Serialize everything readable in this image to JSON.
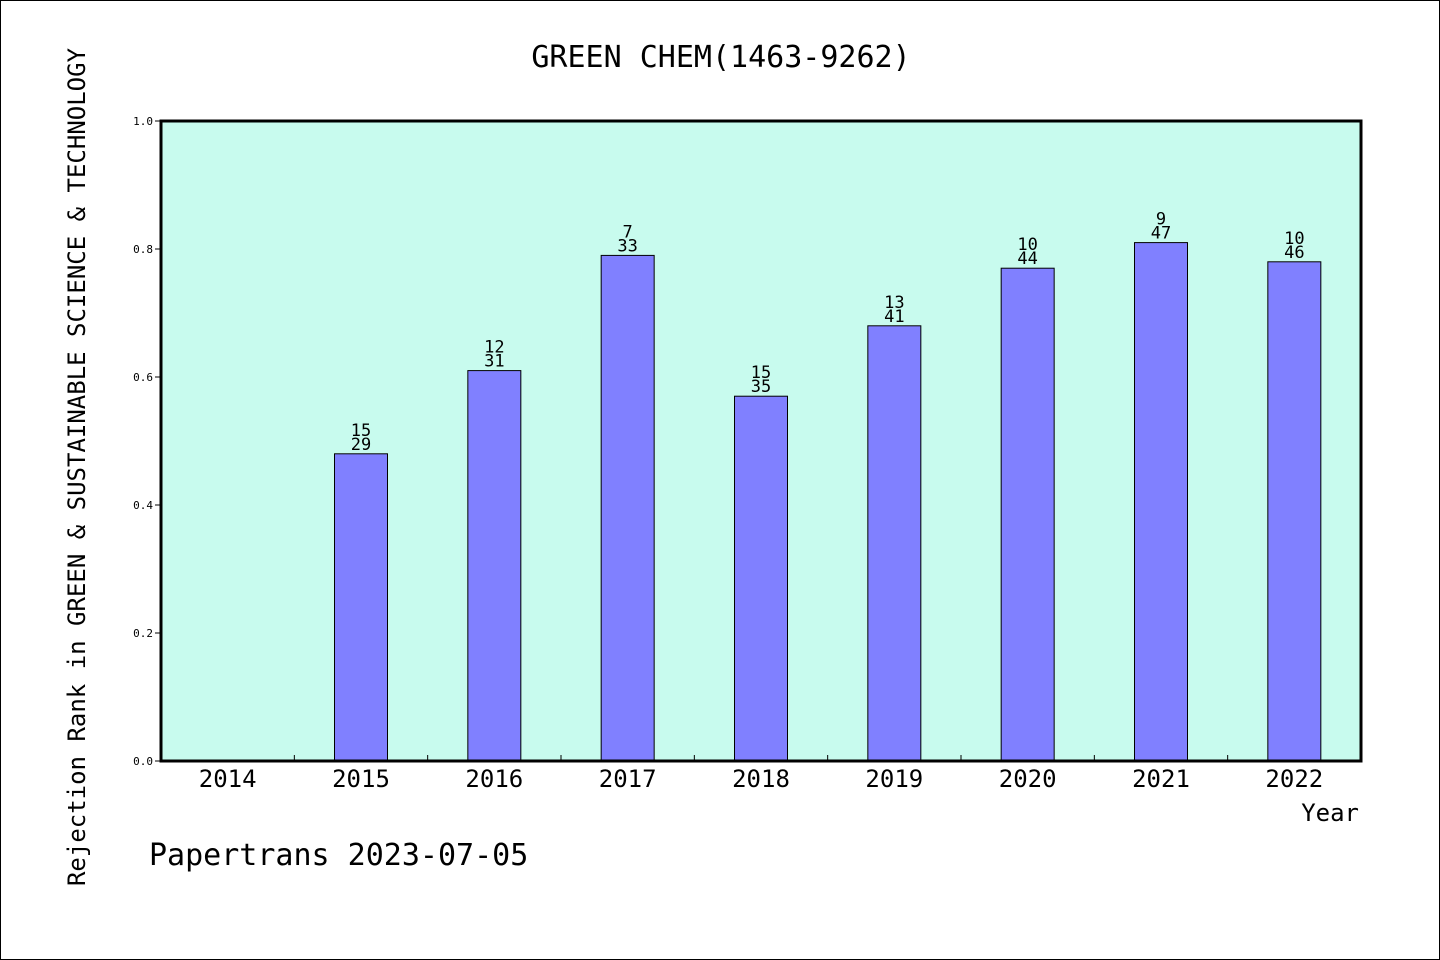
{
  "chart_data": {
    "type": "bar",
    "title": "GREEN CHEM(1463-9262)",
    "xlabel": "Year",
    "ylabel": "Rejection Rank in GREEN & SUSTAINABLE SCIENCE & TECHNOLOGY",
    "categories": [
      "2014",
      "2015",
      "2016",
      "2017",
      "2018",
      "2019",
      "2020",
      "2021",
      "2022"
    ],
    "values": [
      null,
      0.48,
      0.61,
      0.79,
      0.57,
      0.68,
      0.77,
      0.81,
      0.78
    ],
    "rank_labels": [
      "",
      "15",
      "12",
      "7",
      "15",
      "13",
      "10",
      "9",
      "10"
    ],
    "total_labels": [
      "",
      "29",
      "31",
      "33",
      "35",
      "41",
      "44",
      "47",
      "46"
    ],
    "ylim": [
      0,
      1
    ],
    "yticks": [
      "0.0",
      "0.2",
      "0.4",
      "0.6",
      "0.8",
      "1.0"
    ],
    "grid": false,
    "legend": "none",
    "colors": {
      "plot_bg": "#c8fbee",
      "bar": "#8080ff"
    }
  },
  "footer": {
    "credit": "Papertrans 2023-07-05"
  }
}
